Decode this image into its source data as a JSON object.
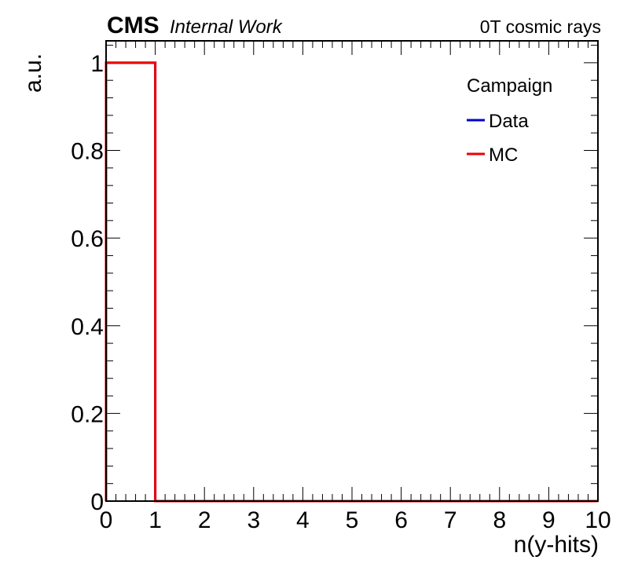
{
  "header": {
    "experiment": "CMS",
    "status": "Internal Work",
    "condition": "0T cosmic rays"
  },
  "chart_data": {
    "type": "line",
    "xlabel": "n(y-hits)",
    "ylabel": "a.u.",
    "xlim": [
      0,
      10
    ],
    "ylim": [
      0,
      1.05
    ],
    "x_ticks": [
      0,
      1,
      2,
      3,
      4,
      5,
      6,
      7,
      8,
      9,
      10
    ],
    "x_tick_labels": [
      "0",
      "1",
      "2",
      "3",
      "4",
      "5",
      "6",
      "7",
      "8",
      "9",
      "10"
    ],
    "y_ticks": [
      0,
      0.2,
      0.4,
      0.6,
      0.8,
      1
    ],
    "y_tick_labels": [
      "0",
      "0.2",
      "0.4",
      "0.6",
      "0.8",
      "1"
    ],
    "bin_edges": [
      0,
      1,
      2,
      3,
      4,
      5,
      6,
      7,
      8,
      9,
      10
    ],
    "legend_title": "Campaign",
    "legend_position": "top-right",
    "series": [
      {
        "name": "Data",
        "color": "#0000cc",
        "values": [
          1,
          0,
          0,
          0,
          0,
          0,
          0,
          0,
          0,
          0
        ]
      },
      {
        "name": "MC",
        "color": "#ee0000",
        "values": [
          1,
          0,
          0,
          0,
          0,
          0,
          0,
          0,
          0,
          0
        ]
      }
    ]
  }
}
